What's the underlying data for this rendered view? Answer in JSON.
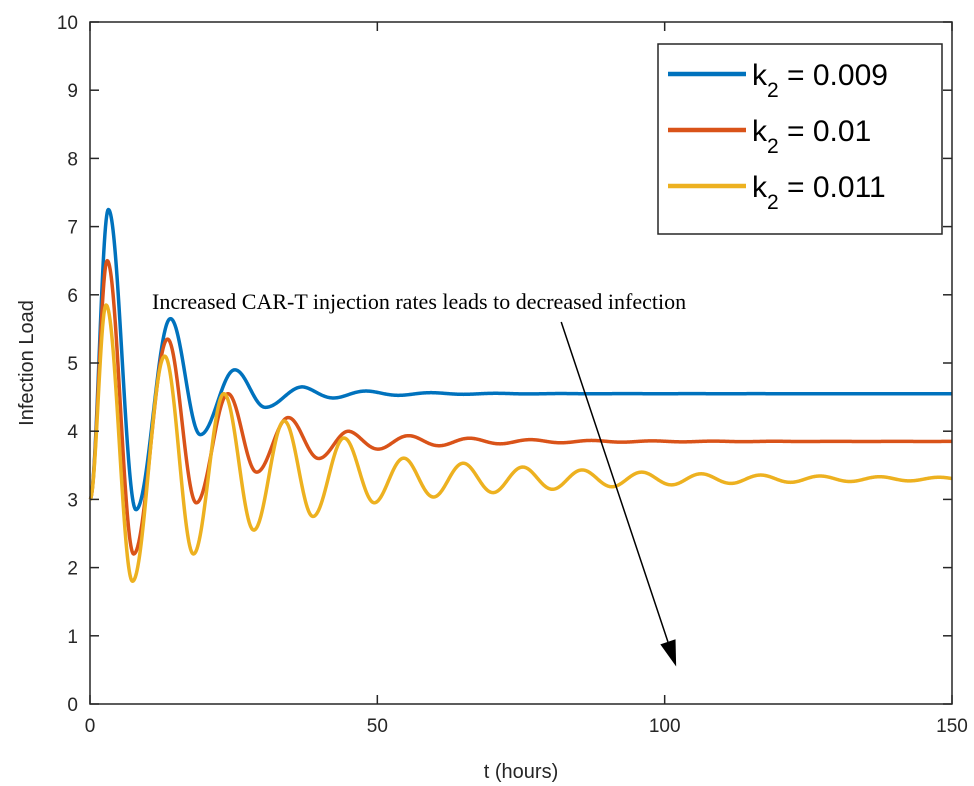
{
  "chart_data": {
    "type": "line",
    "title": "",
    "xlabel": "t (hours)",
    "ylabel": "Infection Load",
    "xlim": [
      0,
      150
    ],
    "ylim": [
      0,
      10
    ],
    "xticks": [
      0,
      50,
      100,
      150
    ],
    "yticks": [
      0,
      1,
      2,
      3,
      4,
      5,
      6,
      7,
      8,
      9,
      10
    ],
    "grid": false,
    "legend_position": "top-right",
    "series": [
      {
        "label_main": "k",
        "label_sub": "2",
        "label_rest": " = 0.009",
        "color": "#0072BD",
        "start": 3.0,
        "steady": 4.55,
        "amplitude": 2.95,
        "decay": 0.085,
        "period": 11.3,
        "peaks": [
          [
            3.2,
            7.25
          ],
          [
            8.0,
            2.85
          ],
          [
            14.0,
            5.65
          ],
          [
            19.2,
            3.95
          ],
          [
            25.2,
            4.9
          ],
          [
            30.5,
            4.35
          ],
          [
            37.0,
            4.65
          ]
        ]
      },
      {
        "label_main": "k",
        "label_sub": "2",
        "label_rest": " = 0.01",
        "color": "#D95319",
        "start": 3.0,
        "steady": 3.85,
        "amplitude": 2.95,
        "decay": 0.055,
        "period": 10.6,
        "peaks": [
          [
            3.0,
            6.5
          ],
          [
            7.6,
            2.2
          ],
          [
            13.5,
            5.35
          ],
          [
            18.5,
            2.95
          ],
          [
            24.0,
            4.55
          ],
          [
            29.0,
            3.4
          ],
          [
            34.5,
            4.2
          ],
          [
            39.8,
            3.6
          ],
          [
            45.0,
            4.0
          ]
        ]
      },
      {
        "label_main": "k",
        "label_sub": "2",
        "label_rest": " = 0.011",
        "color": "#EDB120",
        "start": 3.0,
        "steady": 3.3,
        "amplitude": 2.75,
        "decay": 0.027,
        "period": 10.35,
        "peaks": [
          [
            2.8,
            5.85
          ],
          [
            7.4,
            1.8
          ],
          [
            13.0,
            5.1
          ],
          [
            18.0,
            2.2
          ],
          [
            23.3,
            4.55
          ],
          [
            28.5,
            2.55
          ],
          [
            33.8,
            4.15
          ],
          [
            38.8,
            2.75
          ],
          [
            44.2,
            3.9
          ],
          [
            49.5,
            2.95
          ]
        ]
      }
    ],
    "annotation": {
      "text": "Increased CAR-T injection rates leads to decreased infection",
      "arrow_from": [
        82,
        4.55
      ],
      "arrow_to": [
        102,
        0.55
      ]
    }
  }
}
